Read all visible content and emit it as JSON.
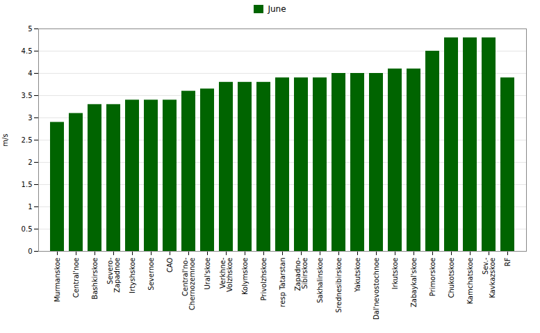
{
  "chart_data": {
    "type": "bar",
    "categories": [
      "Murmanskoe",
      "Central'noe",
      "Bashkirskoe",
      "Severo-\nZapadnoe",
      "Irtyshskoe",
      "Severnoe",
      "CAO",
      "Central'no-\nChernozemnoe",
      "Ural'skoe",
      "Verkhne-\nVolzhskoe",
      "Kolymskoe",
      "Privolzhskoe",
      "resp Tatarstan",
      "Zapadno-\nSibirskoe",
      "Sakhalinskoe",
      "Srednesibirskoe",
      "Yakutskoe",
      "Dal'nevostochnoe",
      "Irkutskoe",
      "Zabaykal'skoe",
      "Primorskoe",
      "Chukotskoe",
      "Kamchatskoe",
      "Sev.-\nKavkazskoe",
      "RF"
    ],
    "series": [
      {
        "name": "June",
        "color": "#006400",
        "values": [
          2.9,
          3.1,
          3.3,
          3.3,
          3.4,
          3.4,
          3.4,
          3.6,
          3.65,
          3.8,
          3.8,
          3.8,
          3.9,
          3.9,
          3.9,
          4.0,
          4.0,
          4.0,
          4.1,
          4.1,
          4.5,
          4.8,
          4.8,
          4.8,
          3.9
        ]
      }
    ],
    "ylabel": "m/s",
    "ylim": [
      0,
      5
    ],
    "yticks": [
      0,
      0.5,
      1,
      1.5,
      2,
      2.5,
      3,
      3.5,
      4,
      4.5,
      5
    ],
    "grid": true,
    "legend": "top"
  }
}
